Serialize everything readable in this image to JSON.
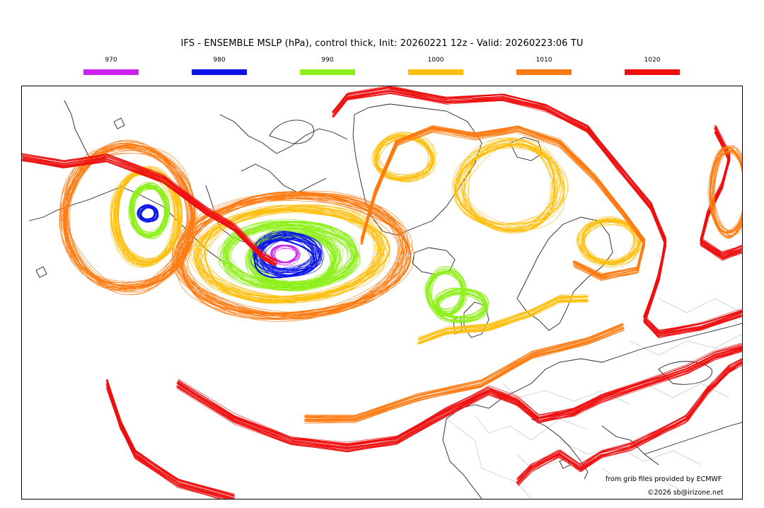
{
  "title": "IFS - ENSEMBLE MSLP (hPa), control thick, Init: 20260221 12z - Valid: 20260223:06 TU",
  "legend": [
    {
      "label": "970",
      "color": "#cc22ee"
    },
    {
      "label": "980",
      "color": "#0a14e6"
    },
    {
      "label": "990",
      "color": "#8ef01a"
    },
    {
      "label": "1000",
      "color": "#ffbf0f"
    },
    {
      "label": "1010",
      "color": "#ff7a10"
    },
    {
      "label": "1020",
      "color": "#ee1010"
    }
  ],
  "colors": {
    "coastline": "#222222",
    "border": "#bbbbbb"
  },
  "credit": "from grib files provided by ECMWF",
  "copyright": "©2026 sb@irizone.net"
}
